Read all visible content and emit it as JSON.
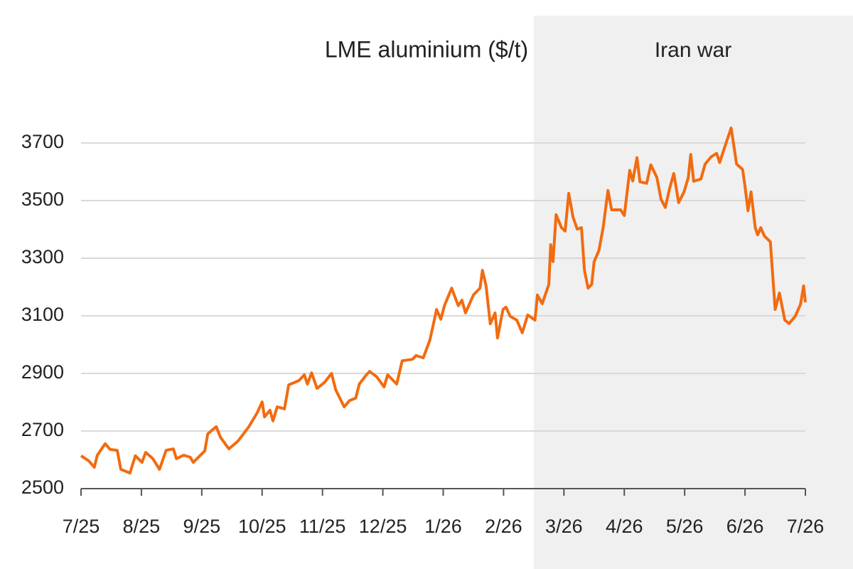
{
  "chart_data": {
    "type": "line",
    "title": "LME aluminium ($/t)",
    "shade": {
      "from": 7.5,
      "label": "Iran war",
      "color": "#f0f0f0"
    },
    "color": "#f26b10",
    "xlim": [
      0,
      12
    ],
    "xticks": [
      {
        "value": 0,
        "label": "7/25"
      },
      {
        "value": 1,
        "label": "8/25"
      },
      {
        "value": 2,
        "label": "9/25"
      },
      {
        "value": 3,
        "label": "10/25"
      },
      {
        "value": 4,
        "label": "11/25"
      },
      {
        "value": 5,
        "label": "12/25"
      },
      {
        "value": 6,
        "label": "1/26"
      },
      {
        "value": 7,
        "label": "2/26"
      },
      {
        "value": 8,
        "label": "3/26"
      },
      {
        "value": 9,
        "label": "4/26"
      },
      {
        "value": 10,
        "label": "5/26"
      },
      {
        "value": 11,
        "label": "6/26"
      },
      {
        "value": 12,
        "label": "7/26"
      }
    ],
    "ylim": [
      2500,
      3900
    ],
    "yticks": [
      2500,
      2700,
      2900,
      3100,
      3300,
      3500,
      3700
    ],
    "grid": true,
    "x": [
      0,
      0.13,
      0.22,
      0.27,
      0.4,
      0.48,
      0.6,
      0.66,
      0.81,
      0.9,
      1.01,
      1.07,
      1.19,
      1.3,
      1.41,
      1.53,
      1.58,
      1.7,
      1.81,
      1.86,
      2.05,
      2.1,
      2.24,
      2.31,
      2.45,
      2.6,
      2.78,
      2.92,
      3.0,
      3.04,
      3.13,
      3.18,
      3.25,
      3.37,
      3.44,
      3.61,
      3.7,
      3.75,
      3.82,
      3.91,
      4.03,
      4.15,
      4.22,
      4.36,
      4.45,
      4.55,
      4.61,
      4.72,
      4.78,
      4.9,
      5.02,
      5.08,
      5.23,
      5.32,
      5.49,
      5.55,
      5.67,
      5.78,
      5.89,
      5.96,
      6.02,
      6.14,
      6.25,
      6.31,
      6.37,
      6.5,
      6.61,
      6.65,
      6.71,
      6.78,
      6.86,
      6.9,
      6.99,
      7.04,
      7.11,
      7.22,
      7.31,
      7.4,
      7.52,
      7.56,
      7.64,
      7.75,
      7.78,
      7.82,
      7.87,
      7.96,
      8.02,
      8.08,
      8.15,
      8.22,
      8.29,
      8.34,
      8.4,
      8.46,
      8.5,
      8.58,
      8.65,
      8.73,
      8.79,
      8.94,
      9.0,
      9.09,
      9.14,
      9.21,
      9.26,
      9.37,
      9.44,
      9.54,
      9.61,
      9.68,
      9.75,
      9.82,
      9.9,
      9.99,
      10.06,
      10.1,
      10.15,
      10.27,
      10.34,
      10.44,
      10.53,
      10.58,
      10.67,
      10.77,
      10.86,
      10.96,
      11.0,
      11.05,
      11.1,
      11.17,
      11.21,
      11.26,
      11.32,
      11.42,
      11.5,
      11.57,
      11.66,
      11.73,
      11.83,
      11.92,
      11.97,
      12.0
    ],
    "values": [
      2614,
      2596,
      2574,
      2616,
      2656,
      2636,
      2633,
      2567,
      2554,
      2614,
      2591,
      2626,
      2604,
      2567,
      2633,
      2638,
      2604,
      2616,
      2609,
      2591,
      2631,
      2690,
      2715,
      2678,
      2638,
      2665,
      2715,
      2764,
      2801,
      2749,
      2772,
      2735,
      2784,
      2777,
      2860,
      2875,
      2895,
      2863,
      2902,
      2848,
      2868,
      2900,
      2843,
      2784,
      2806,
      2814,
      2863,
      2893,
      2907,
      2888,
      2853,
      2895,
      2863,
      2944,
      2949,
      2962,
      2954,
      3016,
      3122,
      3088,
      3135,
      3196,
      3135,
      3154,
      3110,
      3172,
      3196,
      3258,
      3204,
      3072,
      3110,
      3023,
      3122,
      3130,
      3098,
      3085,
      3041,
      3103,
      3085,
      3172,
      3142,
      3209,
      3347,
      3288,
      3451,
      3406,
      3394,
      3525,
      3443,
      3401,
      3406,
      3258,
      3196,
      3209,
      3288,
      3327,
      3406,
      3535,
      3468,
      3468,
      3448,
      3605,
      3568,
      3649,
      3565,
      3560,
      3624,
      3580,
      3504,
      3476,
      3541,
      3594,
      3493,
      3530,
      3580,
      3660,
      3567,
      3575,
      3627,
      3652,
      3664,
      3632,
      3690,
      3752,
      3627,
      3608,
      3549,
      3465,
      3530,
      3406,
      3381,
      3406,
      3377,
      3357,
      3122,
      3179,
      3085,
      3073,
      3098,
      3140,
      3204,
      3147
    ]
  }
}
